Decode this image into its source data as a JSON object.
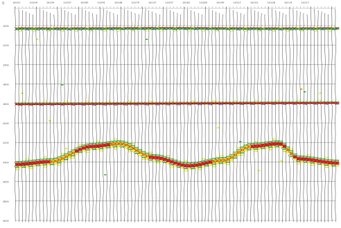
{
  "corner_label": "Q",
  "trace_labels": [
    "14101",
    "14109",
    "14150",
    "14157",
    "14165",
    "14191",
    "14108",
    "14179",
    "14147",
    "14157",
    "14161",
    "14183",
    "14199",
    "14127",
    "14151",
    "14128",
    "14119",
    "14117"
  ],
  "depth_labels": [
    "1000",
    "1200",
    "1400",
    "1600",
    "1800",
    "2000",
    "2200",
    "2400",
    "2600",
    "2800",
    "3000"
  ],
  "colors": {
    "grid": "#9a9a9a",
    "trace": "#2a2a2a",
    "strong_positive": "#e01a10",
    "positive": "#f5a000",
    "mid": "#e9ea17",
    "green": "#45b845",
    "blue": "#2f72d6",
    "label": "#555555"
  }
}
